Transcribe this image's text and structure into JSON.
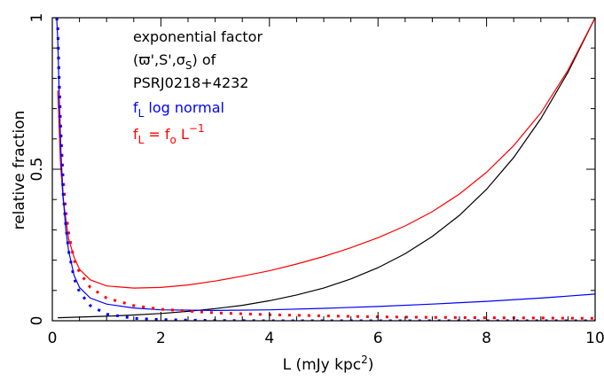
{
  "chart_data": {
    "type": "line",
    "xlabel": "L (mJy kpc",
    "xlabel_sup": "2",
    "xlabel_close": ")",
    "ylabel": "relative fraction",
    "xlim": [
      0,
      10
    ],
    "ylim": [
      0,
      1
    ],
    "x_ticks": [
      0,
      2,
      4,
      6,
      8,
      10
    ],
    "y_ticks": [
      0,
      0.5,
      1
    ],
    "x_tick_labels": [
      "0",
      "2",
      "4",
      "6",
      "8",
      "10"
    ],
    "y_tick_labels": [
      "0",
      "0.5",
      "1"
    ],
    "grid": false,
    "annotations": {
      "line1": "exponential factor",
      "line2_open": "(",
      "line2_varpi": "ϖ",
      "line2_mid": "',S',σ",
      "line2_sub": "S",
      "line2_close": ") of",
      "line3": "PSRJ0218+4232",
      "blue_f": "f",
      "blue_sub": "L",
      "blue_text": " log normal",
      "red_f": "f",
      "red_sub": "L",
      "red_eq": " = f",
      "red_sub_o": "o",
      "red_L": " L",
      "red_sup": "−1"
    },
    "series": [
      {
        "style": "solid",
        "color": "#000000",
        "x": [
          0.1,
          0.5,
          1,
          1.5,
          2,
          2.5,
          3,
          3.5,
          4,
          4.5,
          5,
          5.5,
          6,
          6.5,
          7,
          7.5,
          8,
          8.5,
          9,
          9.5,
          10
        ],
        "y": [
          0.01,
          0.012,
          0.015,
          0.019,
          0.024,
          0.031,
          0.04,
          0.051,
          0.066,
          0.085,
          0.108,
          0.138,
          0.175,
          0.221,
          0.278,
          0.348,
          0.434,
          0.539,
          0.667,
          0.82,
          1.0
        ]
      },
      {
        "style": "solid",
        "color": "#ff0000",
        "x": [
          0.1,
          0.15,
          0.2,
          0.3,
          0.4,
          0.5,
          0.7,
          1,
          1.5,
          2,
          2.5,
          3,
          3.5,
          4,
          4.5,
          5,
          5.5,
          6,
          6.5,
          7,
          7.5,
          8,
          8.5,
          9,
          9.5,
          10
        ],
        "y": [
          0.76,
          0.52,
          0.4,
          0.27,
          0.21,
          0.17,
          0.135,
          0.115,
          0.108,
          0.11,
          0.118,
          0.131,
          0.147,
          0.165,
          0.187,
          0.212,
          0.241,
          0.274,
          0.313,
          0.36,
          0.418,
          0.49,
          0.578,
          0.686,
          0.827,
          1.0
        ]
      },
      {
        "style": "solid",
        "color": "#0000ff",
        "x": [
          0.08,
          0.1,
          0.13,
          0.16,
          0.2,
          0.25,
          0.3,
          0.4,
          0.5,
          0.7,
          1,
          1.5,
          2,
          3,
          4,
          5,
          6,
          7,
          8,
          9,
          10
        ],
        "y": [
          1.0,
          0.93,
          0.72,
          0.55,
          0.41,
          0.3,
          0.23,
          0.15,
          0.11,
          0.075,
          0.055,
          0.042,
          0.036,
          0.034,
          0.036,
          0.041,
          0.047,
          0.055,
          0.064,
          0.075,
          0.088
        ]
      },
      {
        "style": "dotted",
        "color": "#ff0000",
        "x": [
          0.08,
          0.1,
          0.12,
          0.15,
          0.2,
          0.25,
          0.3,
          0.4,
          0.5,
          0.7,
          1,
          1.5,
          2,
          3,
          4,
          5,
          6,
          7,
          8,
          9,
          10
        ],
        "y": [
          1.0,
          0.98,
          0.85,
          0.66,
          0.47,
          0.36,
          0.29,
          0.2,
          0.16,
          0.11,
          0.075,
          0.05,
          0.038,
          0.026,
          0.02,
          0.016,
          0.013,
          0.011,
          0.01,
          0.009,
          0.008
        ]
      },
      {
        "style": "dotted",
        "color": "#0000ff",
        "x": [
          0.08,
          0.1,
          0.12,
          0.15,
          0.2,
          0.25,
          0.3,
          0.4,
          0.5,
          0.7,
          1,
          1.5,
          2,
          2.5,
          3,
          4,
          5,
          6,
          7,
          8,
          9,
          10
        ],
        "y": [
          1.0,
          0.97,
          0.82,
          0.62,
          0.42,
          0.31,
          0.23,
          0.14,
          0.095,
          0.05,
          0.022,
          0.008,
          0.004,
          0.002,
          0.001,
          0.0,
          0.0,
          0.0,
          0.0,
          0.0,
          0.0,
          0.0
        ]
      }
    ]
  }
}
